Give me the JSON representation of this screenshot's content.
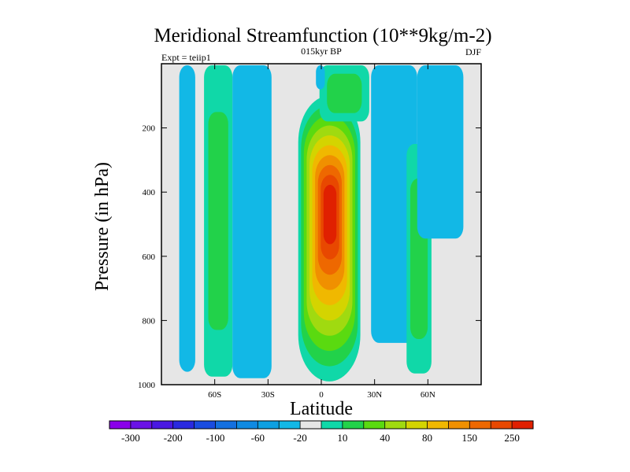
{
  "chart_data": {
    "type": "contour",
    "title": "Meridional Streamfunction (10**9kg/m-2)",
    "left_label": "Expt = teiip1",
    "center_label": "015kyr BP",
    "right_label": "DJF",
    "xlabel": "Latitude",
    "ylabel": "Pressure (in hPa)",
    "x_ticks": [
      {
        "value": -60,
        "label": "60S"
      },
      {
        "value": -30,
        "label": "30S"
      },
      {
        "value": 0,
        "label": "0"
      },
      {
        "value": 30,
        "label": "30N"
      },
      {
        "value": 60,
        "label": "60N"
      }
    ],
    "y_ticks": [
      {
        "value": 200,
        "label": "200"
      },
      {
        "value": 400,
        "label": "400"
      },
      {
        "value": 600,
        "label": "600"
      },
      {
        "value": 800,
        "label": "800"
      },
      {
        "value": 1000,
        "label": "1000"
      }
    ],
    "xlim": [
      -90,
      90
    ],
    "ylim": [
      1000,
      0
    ],
    "y_inverted": true,
    "colorbar": {
      "orientation": "horizontal",
      "levels": [
        -300,
        -250,
        -200,
        -150,
        -100,
        -80,
        -60,
        -40,
        -20,
        -10,
        10,
        20,
        40,
        60,
        80,
        100,
        150,
        200,
        250,
        300
      ],
      "shown_labels": [
        "-300",
        "-200",
        "-100",
        "-60",
        "-20",
        "10",
        "40",
        "80",
        "150",
        "250"
      ],
      "colors": [
        "#8a00ea",
        "#6a12e6",
        "#4a18e2",
        "#2a2ae0",
        "#1a4ce0",
        "#1470e0",
        "#108ae2",
        "#0ea0e2",
        "#12b8e6",
        "#e6e6e6",
        "#10d8a8",
        "#22d24a",
        "#5ada10",
        "#a0da10",
        "#d4d400",
        "#f0b800",
        "#f09000",
        "#ee6800",
        "#e84800",
        "#e02000"
      ]
    },
    "fields": [
      {
        "sign": "negative",
        "feature": "cell",
        "lat_range": [
          -80,
          -71
        ],
        "pressure_range": [
          5,
          960
        ],
        "min_level": -20
      },
      {
        "sign": "positive",
        "feature": "cell",
        "lat_range": [
          -66,
          -50
        ],
        "pressure_range": [
          5,
          975
        ],
        "max_level": 20
      },
      {
        "sign": "negative",
        "feature": "cell",
        "lat_range": [
          -50,
          -28
        ],
        "pressure_range": [
          5,
          980
        ],
        "min_level": -20
      },
      {
        "sign": "positive",
        "feature": "main cell",
        "lat_range": [
          -13,
          22
        ],
        "pressure_range": [
          100,
          990
        ],
        "max_level": 300,
        "peak_lat": 5,
        "peak_pressure": 450
      },
      {
        "sign": "positive",
        "feature": "cell",
        "lat_range": [
          -1,
          27
        ],
        "pressure_range": [
          5,
          180
        ],
        "max_level": 20
      },
      {
        "sign": "negative",
        "feature": "cell",
        "lat_range": [
          -3,
          2
        ],
        "pressure_range": [
          5,
          80
        ],
        "min_level": -20
      },
      {
        "sign": "negative",
        "feature": "cell",
        "lat_range": [
          28,
          54
        ],
        "pressure_range": [
          5,
          870
        ],
        "min_level": -20
      },
      {
        "sign": "positive",
        "feature": "cell",
        "lat_range": [
          48,
          62
        ],
        "pressure_range": [
          250,
          965
        ],
        "max_level": 20
      },
      {
        "sign": "negative",
        "feature": "cell",
        "lat_range": [
          54,
          80
        ],
        "pressure_range": [
          5,
          545
        ],
        "min_level": -20
      }
    ]
  }
}
